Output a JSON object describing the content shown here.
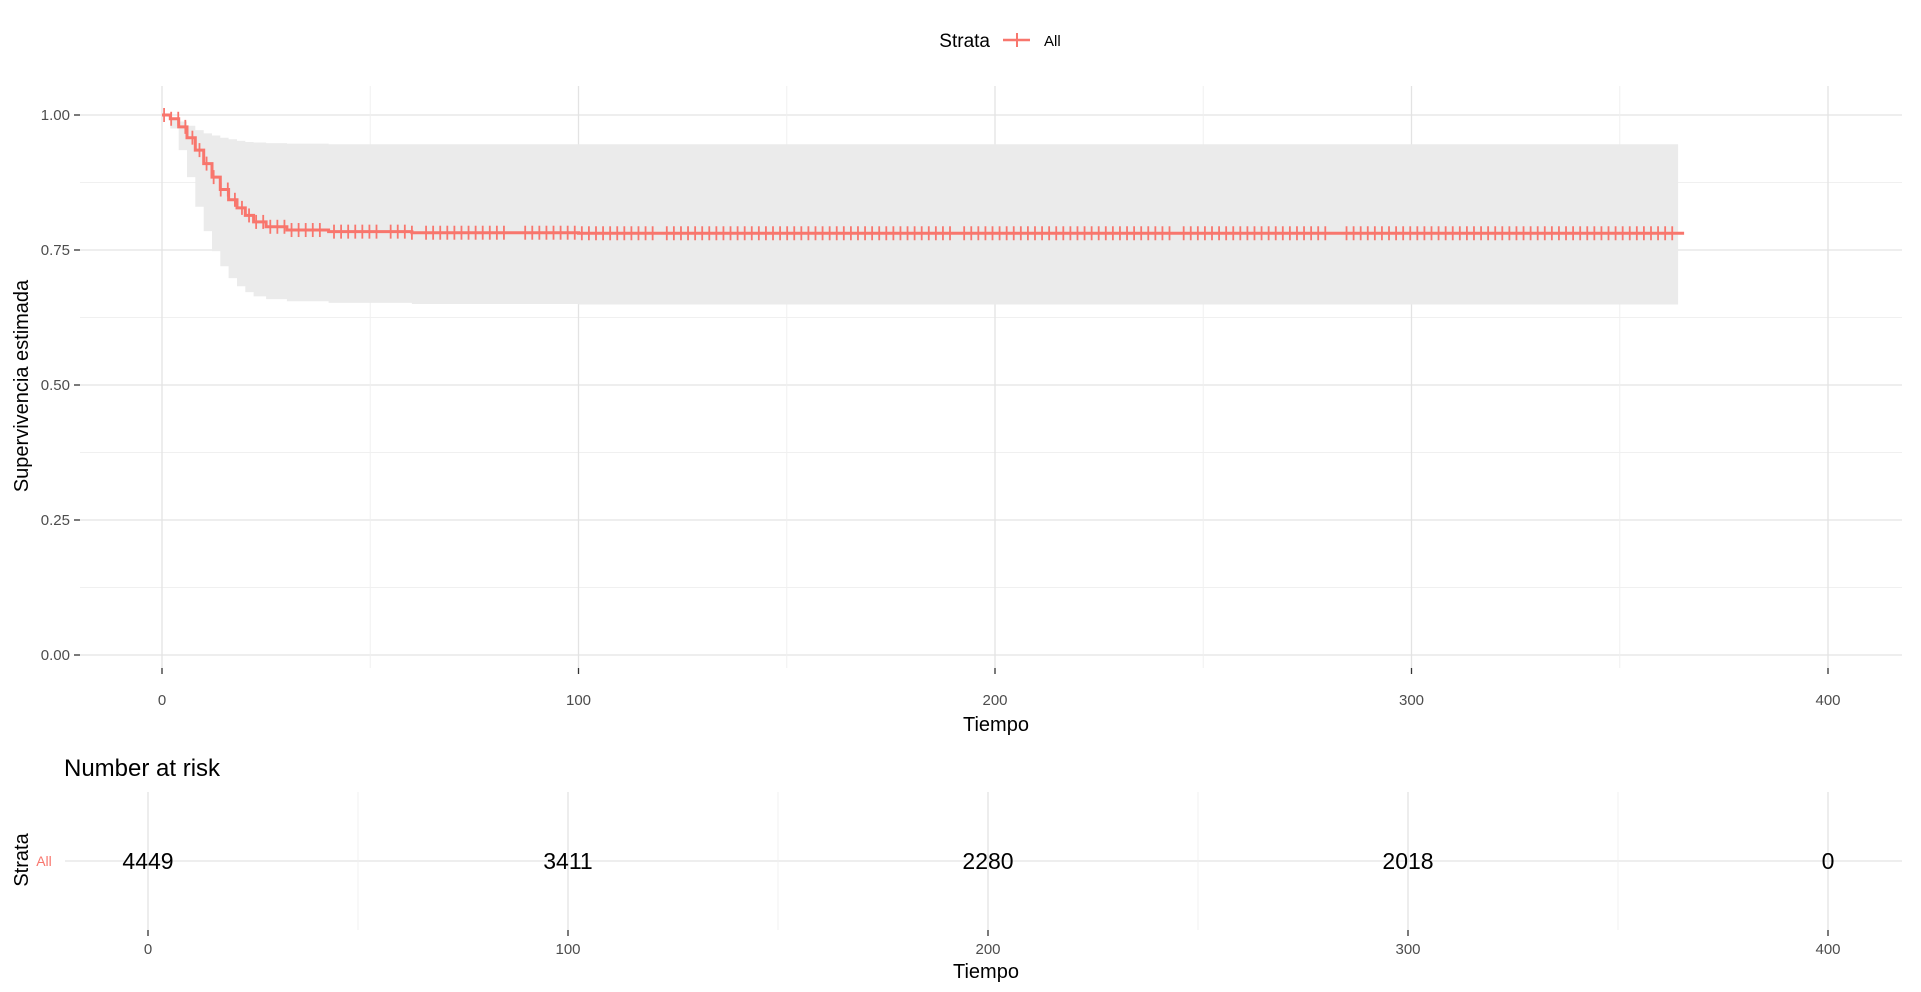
{
  "chart_data": [
    {
      "type": "line",
      "subtype": "kaplan-meier survival curve with confidence band and censor marks",
      "legend": {
        "title": "Strata",
        "position": "top",
        "entries": [
          {
            "label": "All",
            "color": "#F8766D"
          }
        ]
      },
      "xlabel": "Tiempo",
      "ylabel": "Supervivencia estimada",
      "xlim": [
        -20,
        420
      ],
      "ylim": [
        -0.02,
        1.04
      ],
      "x_ticks": [
        0,
        100,
        200,
        300,
        400
      ],
      "y_ticks": [
        0.0,
        0.25,
        0.5,
        0.75,
        1.0
      ],
      "y_tick_labels": [
        "0.00",
        "0.25",
        "0.50",
        "0.75",
        "1.00"
      ],
      "grid": true,
      "series": [
        {
          "name": "All",
          "color": "#F8766D",
          "x": [
            0,
            2,
            4,
            6,
            8,
            10,
            12,
            14,
            16,
            18,
            20,
            22,
            25,
            30,
            40,
            60,
            100,
            200,
            300,
            364
          ],
          "y": [
            1.0,
            0.993,
            0.978,
            0.958,
            0.935,
            0.91,
            0.885,
            0.862,
            0.843,
            0.828,
            0.814,
            0.802,
            0.793,
            0.787,
            0.784,
            0.782,
            0.781,
            0.781,
            0.781,
            0.781
          ],
          "upper": [
            1.0,
            0.995,
            0.988,
            0.98,
            0.972,
            0.966,
            0.962,
            0.958,
            0.955,
            0.952,
            0.95,
            0.949,
            0.948,
            0.947,
            0.946,
            0.946,
            0.946,
            0.946,
            0.946,
            0.946
          ],
          "lower": [
            1.0,
            0.975,
            0.935,
            0.885,
            0.83,
            0.785,
            0.748,
            0.72,
            0.698,
            0.683,
            0.672,
            0.664,
            0.659,
            0.655,
            0.652,
            0.65,
            0.649,
            0.649,
            0.649,
            0.649
          ]
        }
      ]
    },
    {
      "type": "table",
      "title": "Number at risk",
      "xlabel": "Tiempo",
      "ylabel": "Strata",
      "x_ticks": [
        0,
        100,
        200,
        300,
        400
      ],
      "rows": [
        {
          "strata": "All",
          "color": "#F8766D",
          "times": [
            0,
            100,
            200,
            300,
            400
          ],
          "values": [
            "4449",
            "3411",
            "2280",
            "2018",
            "0"
          ]
        }
      ]
    }
  ]
}
